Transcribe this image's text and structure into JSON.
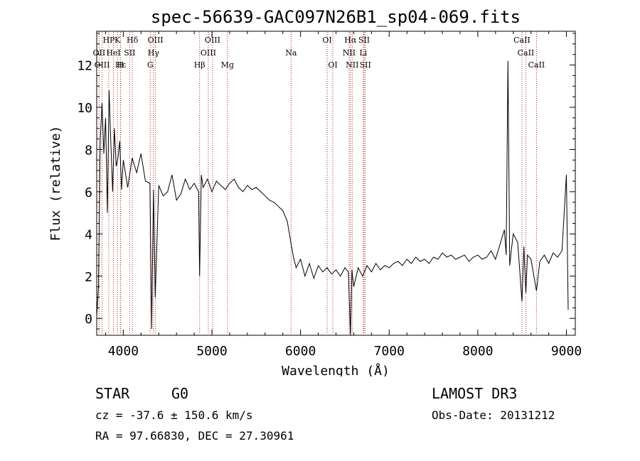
{
  "chart_data": {
    "type": "line",
    "title": "spec-56639-GAC097N26B1_sp04-069.fits",
    "xlabel": "Wavelength (Å)",
    "ylabel": "Flux (relative)",
    "xlim": [
      3700,
      9100
    ],
    "ylim": [
      -0.8,
      13.6
    ],
    "xticks": [
      4000,
      5000,
      6000,
      7000,
      8000,
      9000
    ],
    "yticks": [
      0,
      2,
      4,
      6,
      8,
      10,
      12
    ],
    "series": [
      {
        "name": "flux",
        "x": [
          3700,
          3720,
          3740,
          3760,
          3780,
          3800,
          3820,
          3840,
          3860,
          3880,
          3900,
          3920,
          3940,
          3960,
          3980,
          4000,
          4050,
          4100,
          4150,
          4200,
          4250,
          4300,
          4320,
          4340,
          4360,
          4400,
          4450,
          4500,
          4550,
          4600,
          4650,
          4700,
          4750,
          4800,
          4850,
          4861,
          4880,
          4900,
          4950,
          5000,
          5050,
          5100,
          5150,
          5200,
          5250,
          5300,
          5350,
          5400,
          5450,
          5500,
          5550,
          5600,
          5650,
          5700,
          5750,
          5800,
          5850,
          5890,
          5920,
          5950,
          6000,
          6050,
          6100,
          6150,
          6200,
          6250,
          6300,
          6350,
          6400,
          6450,
          6500,
          6540,
          6563,
          6580,
          6600,
          6650,
          6700,
          6750,
          6800,
          6850,
          6900,
          6950,
          7000,
          7050,
          7100,
          7150,
          7200,
          7250,
          7300,
          7350,
          7400,
          7450,
          7500,
          7550,
          7600,
          7650,
          7700,
          7750,
          7800,
          7850,
          7900,
          7950,
          8000,
          8050,
          8100,
          8150,
          8200,
          8250,
          8300,
          8320,
          8340,
          8360,
          8380,
          8400,
          8450,
          8498,
          8520,
          8542,
          8560,
          8600,
          8662,
          8700,
          8750,
          8800,
          8850,
          8900,
          8950,
          9000,
          9020
        ],
        "values": [
          0.1,
          1.5,
          8.5,
          10.2,
          7.8,
          9.5,
          5.0,
          10.8,
          8.3,
          6.0,
          9.0,
          7.2,
          7.6,
          8.4,
          6.1,
          7.5,
          6.2,
          7.6,
          6.9,
          7.8,
          6.5,
          6.4,
          -0.5,
          6.1,
          1.0,
          6.3,
          5.8,
          6.0,
          6.8,
          5.6,
          5.9,
          6.6,
          6.1,
          6.4,
          6.0,
          2.0,
          6.8,
          6.2,
          6.6,
          6.0,
          6.5,
          6.3,
          6.1,
          6.4,
          6.6,
          6.2,
          6.0,
          6.3,
          6.1,
          6.2,
          6.0,
          5.8,
          5.6,
          5.5,
          5.3,
          5.1,
          4.6,
          3.6,
          2.9,
          2.4,
          2.8,
          2.0,
          2.6,
          1.9,
          2.5,
          2.2,
          2.4,
          2.1,
          2.3,
          2.0,
          2.4,
          2.2,
          -0.8,
          2.3,
          1.5,
          2.4,
          2.0,
          2.5,
          2.2,
          2.6,
          2.3,
          2.5,
          2.4,
          2.6,
          2.7,
          2.5,
          2.8,
          2.6,
          2.9,
          2.7,
          2.8,
          2.6,
          2.9,
          2.8,
          3.1,
          2.9,
          3.0,
          2.8,
          2.9,
          3.0,
          2.7,
          2.9,
          3.0,
          2.8,
          2.9,
          3.2,
          2.8,
          3.5,
          4.2,
          3.0,
          12.2,
          2.5,
          3.3,
          4.0,
          3.6,
          0.8,
          3.4,
          1.2,
          3.0,
          2.8,
          1.3,
          2.7,
          3.0,
          2.6,
          3.1,
          2.9,
          3.2,
          6.8,
          0.4
        ]
      }
    ],
    "line_groups": [
      {
        "row": 0,
        "lines": [
          {
            "label": "HP",
            "x": 3836
          },
          {
            "label": "K",
            "x": 3934
          },
          {
            "label": "Hδ",
            "x": 4102
          },
          {
            "label": "OIII",
            "x": 4363
          },
          {
            "label": "OIII",
            "x": 5007
          },
          {
            "label": "OI",
            "x": 6300
          },
          {
            "label": "Hα",
            "x": 6563
          },
          {
            "label": "SII",
            "x": 6717
          },
          {
            "label": "CaII",
            "x": 8498
          }
        ]
      },
      {
        "row": 1,
        "lines": [
          {
            "label": "OII",
            "x": 3727
          },
          {
            "label": "HeI",
            "x": 3889
          },
          {
            "label": "SII",
            "x": 4072
          },
          {
            "label": "Hγ",
            "x": 4341
          },
          {
            "label": "OIII",
            "x": 4959
          },
          {
            "label": "Na",
            "x": 5893
          },
          {
            "label": "NII",
            "x": 6548
          },
          {
            "label": "Li",
            "x": 6708
          },
          {
            "label": "CaII",
            "x": 8542
          }
        ]
      },
      {
        "row": 2,
        "lines": [
          {
            "label": "OIII",
            "x": 3760
          },
          {
            "label": "Hε",
            "x": 3970
          },
          {
            "label": "H",
            "x": 3968
          },
          {
            "label": "G",
            "x": 4304
          },
          {
            "label": "Hβ",
            "x": 4861
          },
          {
            "label": "Mg",
            "x": 5175
          },
          {
            "label": "OI",
            "x": 6364
          },
          {
            "label": "NII",
            "x": 6583
          },
          {
            "label": "SII",
            "x": 6731
          },
          {
            "label": "CaII",
            "x": 8662
          }
        ]
      }
    ]
  },
  "info": {
    "object_class": "STAR",
    "subclass": "G0",
    "cz": "cz = -37.6 ± 150.6 km/s",
    "coords": "RA =  97.66830, DEC =  27.30961",
    "survey": "LAMOST DR3",
    "obs_date": "Obs-Date: 20131212"
  },
  "colors": {
    "line_marker": "#b22222",
    "spectrum": "#000000"
  }
}
